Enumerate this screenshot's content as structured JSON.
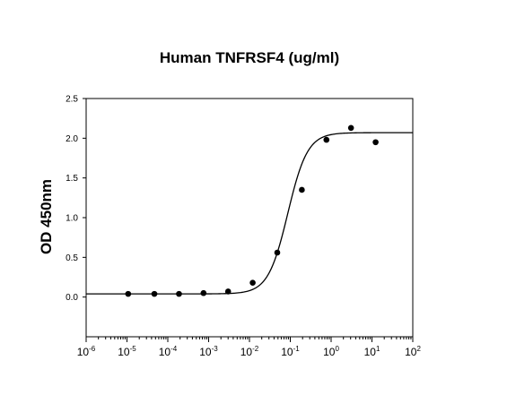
{
  "chart_data": {
    "type": "scatter",
    "title": "Human TNFRSF4 (ug/ml)",
    "xlabel": "",
    "ylabel": "OD 450nm",
    "x_scale": "log",
    "xlim": [
      1e-06,
      100
    ],
    "ylim": [
      -0.5,
      2.5
    ],
    "x_tick_values": [
      1e-06,
      1e-05,
      0.0001,
      0.001,
      0.01,
      0.1,
      1,
      10,
      100
    ],
    "x_tick_labels": [
      {
        "base": "10",
        "exp": "-6"
      },
      {
        "base": "10",
        "exp": "-5"
      },
      {
        "base": "10",
        "exp": "-4"
      },
      {
        "base": "10",
        "exp": "-3"
      },
      {
        "base": "10",
        "exp": "-2"
      },
      {
        "base": "10",
        "exp": "-1"
      },
      {
        "base": "10",
        "exp": "0"
      },
      {
        "base": "10",
        "exp": "1"
      },
      {
        "base": "10",
        "exp": "2"
      }
    ],
    "y_tick_values": [
      0.0,
      0.5,
      1.0,
      1.5,
      2.0,
      2.5
    ],
    "y_tick_labels": [
      "0.0",
      "0.5",
      "1.0",
      "1.5",
      "2.0",
      "2.5"
    ],
    "grid": false,
    "legend": "none",
    "series": [
      {
        "type": "scatter",
        "x": [
          1.07e-05,
          4.69e-05,
          0.000188,
          0.00075,
          0.003,
          0.012,
          0.048,
          0.192,
          0.768,
          3.07,
          12.3
        ],
        "y": [
          0.04,
          0.04,
          0.04,
          0.05,
          0.07,
          0.18,
          0.56,
          1.35,
          1.98,
          2.13,
          1.95
        ]
      },
      {
        "type": "line",
        "fit": "4PL",
        "bottom": 0.04,
        "top": 2.07,
        "ec50": 0.087,
        "hill": 1.8
      }
    ],
    "marker_color": "#000000",
    "line_color": "#000000"
  }
}
